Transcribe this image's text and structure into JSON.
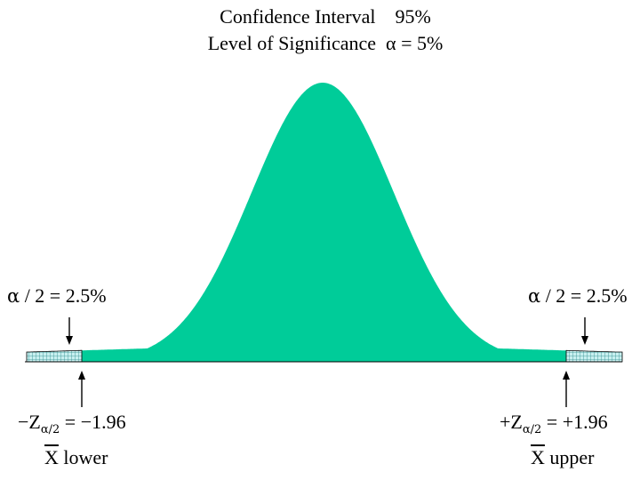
{
  "title": {
    "line1": "Confidence Interval    95%",
    "line2": "Level of Significance  α = 5%"
  },
  "left_tail": {
    "area_alpha": "α",
    "area_rest": " / 2 = 2.5%",
    "z_sign": "−Z",
    "z_sub": "α/2",
    "z_value": " = −1.96",
    "x_bar": "X",
    "x_word": " lower"
  },
  "right_tail": {
    "area_alpha": "α",
    "area_rest": " / 2 = 2.5%",
    "z_sign": "+Z",
    "z_sub": "α/2",
    "z_value": " = +1.96",
    "x_bar": "X",
    "x_word": " upper"
  },
  "colors": {
    "curve_fill": "#00cc99",
    "tail_fill": "#c8f0f0",
    "tail_grid": "#2e8b8b",
    "axis": "#000000"
  }
}
